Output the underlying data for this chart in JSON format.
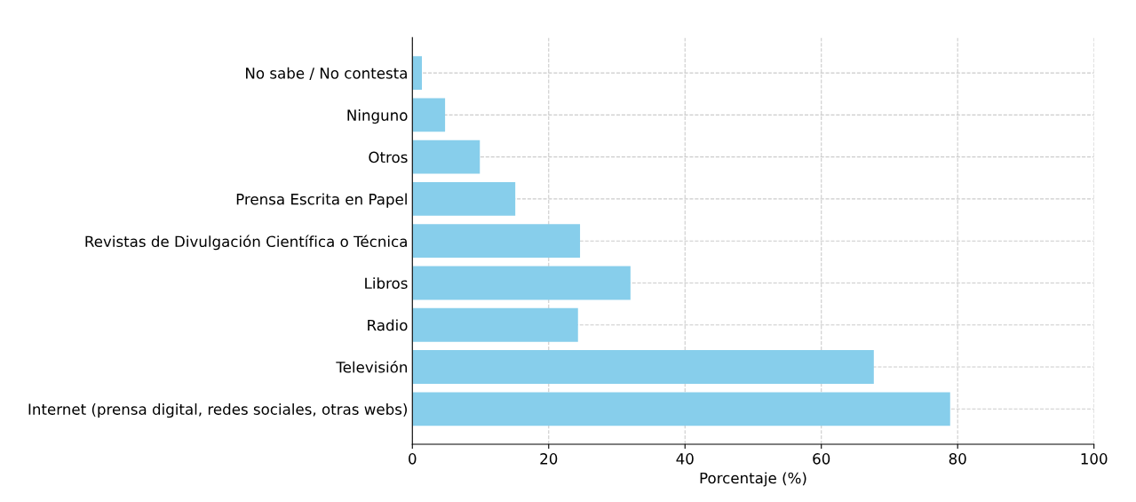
{
  "chart_data": {
    "type": "bar",
    "orientation": "horizontal",
    "xlabel": "Porcentaje (%)",
    "categories": [
      "No sabe / No contesta",
      "Ninguno",
      "Otros",
      "Prensa Escrita en Papel",
      "Revistas de Divulgación Científica o Técnica",
      "Libros",
      "Radio",
      "Televisión",
      "Internet (prensa digital, redes sociales, otras webs)"
    ],
    "values": [
      1.4,
      4.8,
      9.9,
      15.1,
      24.6,
      32.0,
      24.3,
      67.7,
      78.9
    ],
    "color": "#87ceeb",
    "xlim": [
      0,
      100
    ],
    "xticks": [
      0,
      20,
      40,
      60,
      80,
      100
    ],
    "grid": true
  }
}
